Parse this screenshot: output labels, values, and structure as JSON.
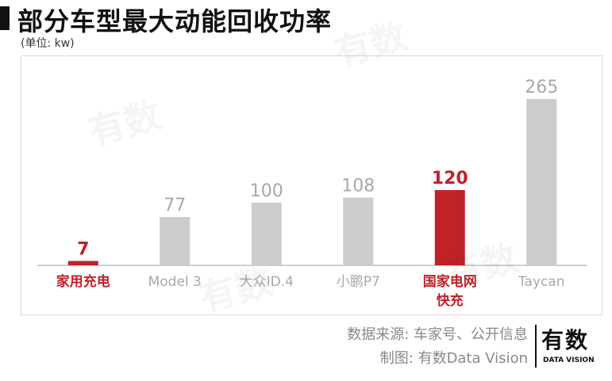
{
  "header": {
    "title": "部分车型最大动能回收功率",
    "unit": "(单位: kw)"
  },
  "colors": {
    "highlight": "#c0222a",
    "normal_bar": "#cccccc",
    "normal_label": "#a8a8a8",
    "axis": "#cfcfcf"
  },
  "chart_data": {
    "type": "bar",
    "categories": [
      "家用充电",
      "Model 3",
      "大众ID.4",
      "小鹏P7",
      "国家电网\n快充",
      "Taycan"
    ],
    "values": [
      7,
      77,
      100,
      108,
      120,
      265
    ],
    "highlighted": [
      true,
      false,
      false,
      false,
      true,
      false
    ],
    "ylim": [
      0,
      265
    ],
    "grid": false,
    "legend": "none",
    "title": "部分车型最大动能回收功率",
    "ylabel": "(单位: kw)"
  },
  "footer": {
    "source": "数据来源: 车家号、公开信息",
    "credit": "制图: 有数Data Vision"
  },
  "logo": {
    "main": "有数",
    "sub": "DATA VISION"
  },
  "watermark": "有数"
}
